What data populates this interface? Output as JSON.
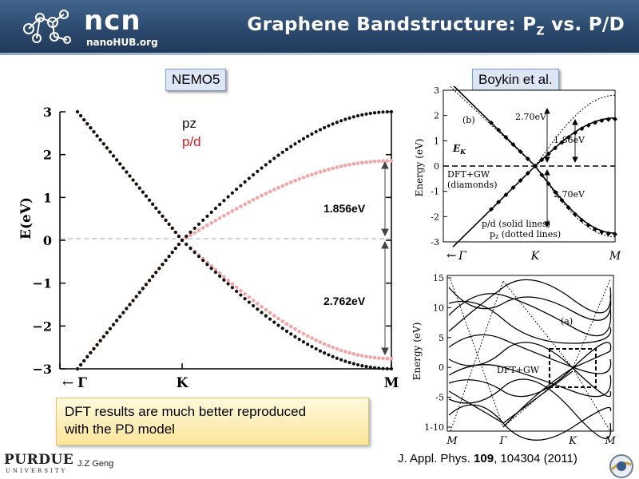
{
  "header": {
    "logo_text": "ncn",
    "logo_sub": "nanoHUB.org",
    "title_main": "Graphene Bandstructure: P",
    "title_sub": "Z",
    "title_end": " vs. P/D"
  },
  "labels": {
    "nemo": "NEMO5",
    "boykin": "Boykin et al."
  },
  "chart_data": [
    {
      "type": "line",
      "ylabel": "E(eV)",
      "ylim": [
        -3,
        3
      ],
      "yticks": [
        "3",
        "2",
        "1",
        "0",
        "−1",
        "−2",
        "−3"
      ],
      "xticks": [
        "Γ",
        "K",
        "M"
      ],
      "x_arrow": "←",
      "legend": [
        "pz",
        "p/d"
      ],
      "colors": {
        "pz": "#111111",
        "pd": "#e31a1c",
        "pd_light": "#f4a6a6"
      },
      "series": [
        {
          "name": "pz",
          "valence_M": -3.0,
          "conduction_M": 3.0,
          "gamma_value": 3.0
        },
        {
          "name": "p/d",
          "valence_M": -2.762,
          "conduction_M": 1.856,
          "gamma_value": 3.0
        }
      ],
      "annotations": [
        "1.856eV",
        "2.762eV"
      ]
    },
    {
      "type": "line",
      "ylabel": "Energy (eV)",
      "ylim": [
        -3,
        3
      ],
      "yticks": [
        "3",
        "2",
        "1",
        "0",
        "-1",
        "-2",
        "-3"
      ],
      "xticks": [
        "Γ",
        "K",
        "M"
      ],
      "x_arrow": "←",
      "panel": "(b)",
      "text": {
        "ek": "E",
        "ek_sub": "K",
        "dft_1": "DFT+GW",
        "dft_2": "(diamonds)",
        "pd_1": "p/d (solid lines)",
        "pz_1": "p",
        "pz_sub": "z",
        "pz_2": " (dotted lines)"
      },
      "annotations": [
        "2.70eV",
        "1.86eV",
        "2.70eV"
      ]
    },
    {
      "type": "line",
      "ylabel": "Energy (eV)",
      "yticks": [
        "15",
        "10",
        "5",
        "0",
        "-5",
        "1-10"
      ],
      "xticks": [
        "M",
        "Γ",
        "K",
        "M"
      ],
      "panel": "(a)",
      "label": "DFT+GW"
    }
  ],
  "conclusion": {
    "line1": "DFT results are much better reproduced",
    "line2": "with the PD model"
  },
  "citation": {
    "prefix": "J. Appl. Phys. ",
    "volume": "109",
    "rest": ", 104304 (2011)"
  },
  "footer": {
    "purdue": "PURDUE",
    "university": "UNIVERSITY",
    "author": "J.Z Geng"
  }
}
